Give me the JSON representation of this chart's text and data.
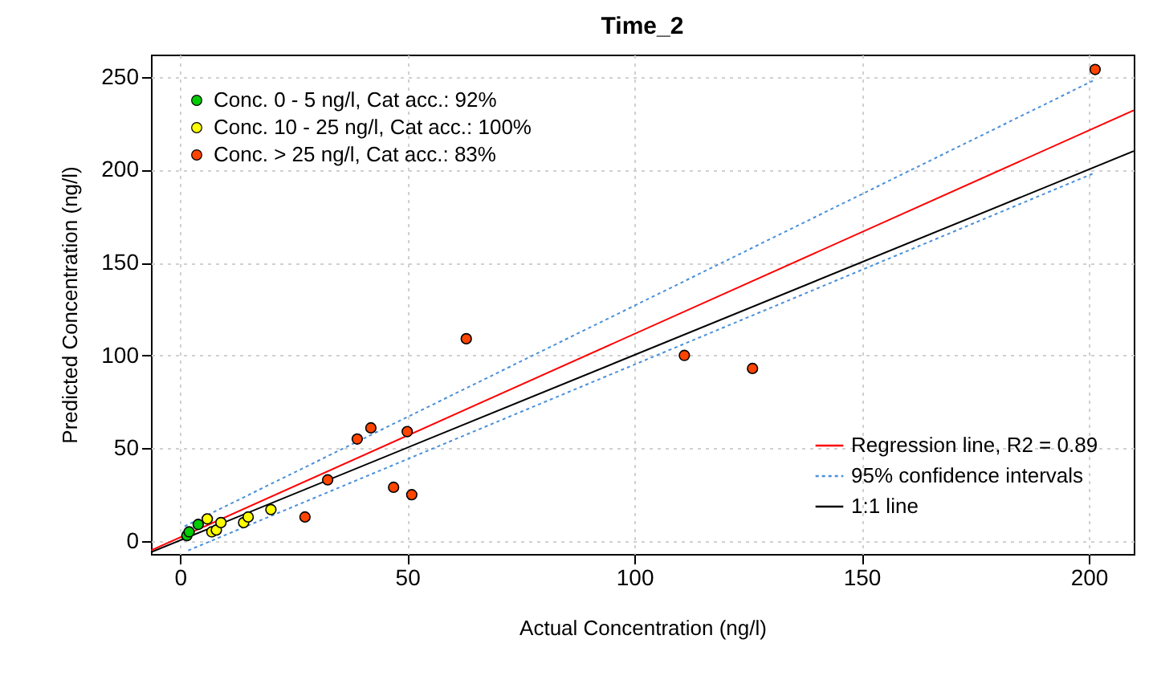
{
  "chart_data": {
    "type": "scatter",
    "title": "Time_2",
    "xlabel": "Actual Concentration (ng/l)",
    "ylabel": "Predicted Concentration (ng/l)",
    "xlim": [
      -6.4,
      209.9
    ],
    "ylim": [
      -6.9,
      262
    ],
    "xticks": [
      0,
      50,
      100,
      150,
      200
    ],
    "yticks": [
      0,
      50,
      100,
      150,
      200,
      250
    ],
    "grid": true,
    "legend": "top left",
    "marker": "circle",
    "series": [
      {
        "name": "Conc. 0 - 5 ng/l, Cat acc.: 92%",
        "color": "#00cc00",
        "x": [
          1.5,
          2,
          4
        ],
        "values": [
          3,
          5,
          9
        ]
      },
      {
        "name": "Conc. 10 - 25 ng/l, Cat acc.: 100%",
        "color": "#ffff00",
        "x": [
          6,
          7,
          8,
          9,
          14,
          15,
          20
        ],
        "values": [
          12,
          5,
          6,
          10,
          10,
          13,
          17
        ]
      },
      {
        "name": "Conc. > 25 ng/l, Cat acc.: 83%",
        "color": "#ff4500",
        "x": [
          27.5,
          32.5,
          39,
          42,
          47,
          50,
          51,
          63,
          111,
          126,
          201.4
        ],
        "values": [
          13,
          33,
          55,
          61,
          29,
          59,
          25,
          109,
          100,
          93,
          254
        ]
      },
      {
        "type": "line",
        "name": "Regression line, R2 = 0.89",
        "color": "#ff0000",
        "line_style": "solid",
        "marker": "none",
        "x": [
          -6.4,
          209.9
        ],
        "values": [
          -5,
          232
        ]
      },
      {
        "type": "line",
        "name": "95% confidence intervals",
        "color": "#4a90d9",
        "line_style": "dotted",
        "marker": "none",
        "x": [
          1,
          201
        ],
        "values": [
          8,
          248
        ]
      },
      {
        "type": "line",
        "color": "#4a90d9",
        "line_style": "dotted",
        "marker": "none",
        "x": [
          1.8,
          201
        ],
        "values": [
          -5,
          198
        ]
      },
      {
        "type": "line",
        "name": "1:1 line",
        "color": "#000000",
        "line_style": "solid",
        "marker": "none",
        "x": [
          -6.4,
          209.9
        ],
        "values": [
          -6,
          210
        ]
      }
    ]
  }
}
